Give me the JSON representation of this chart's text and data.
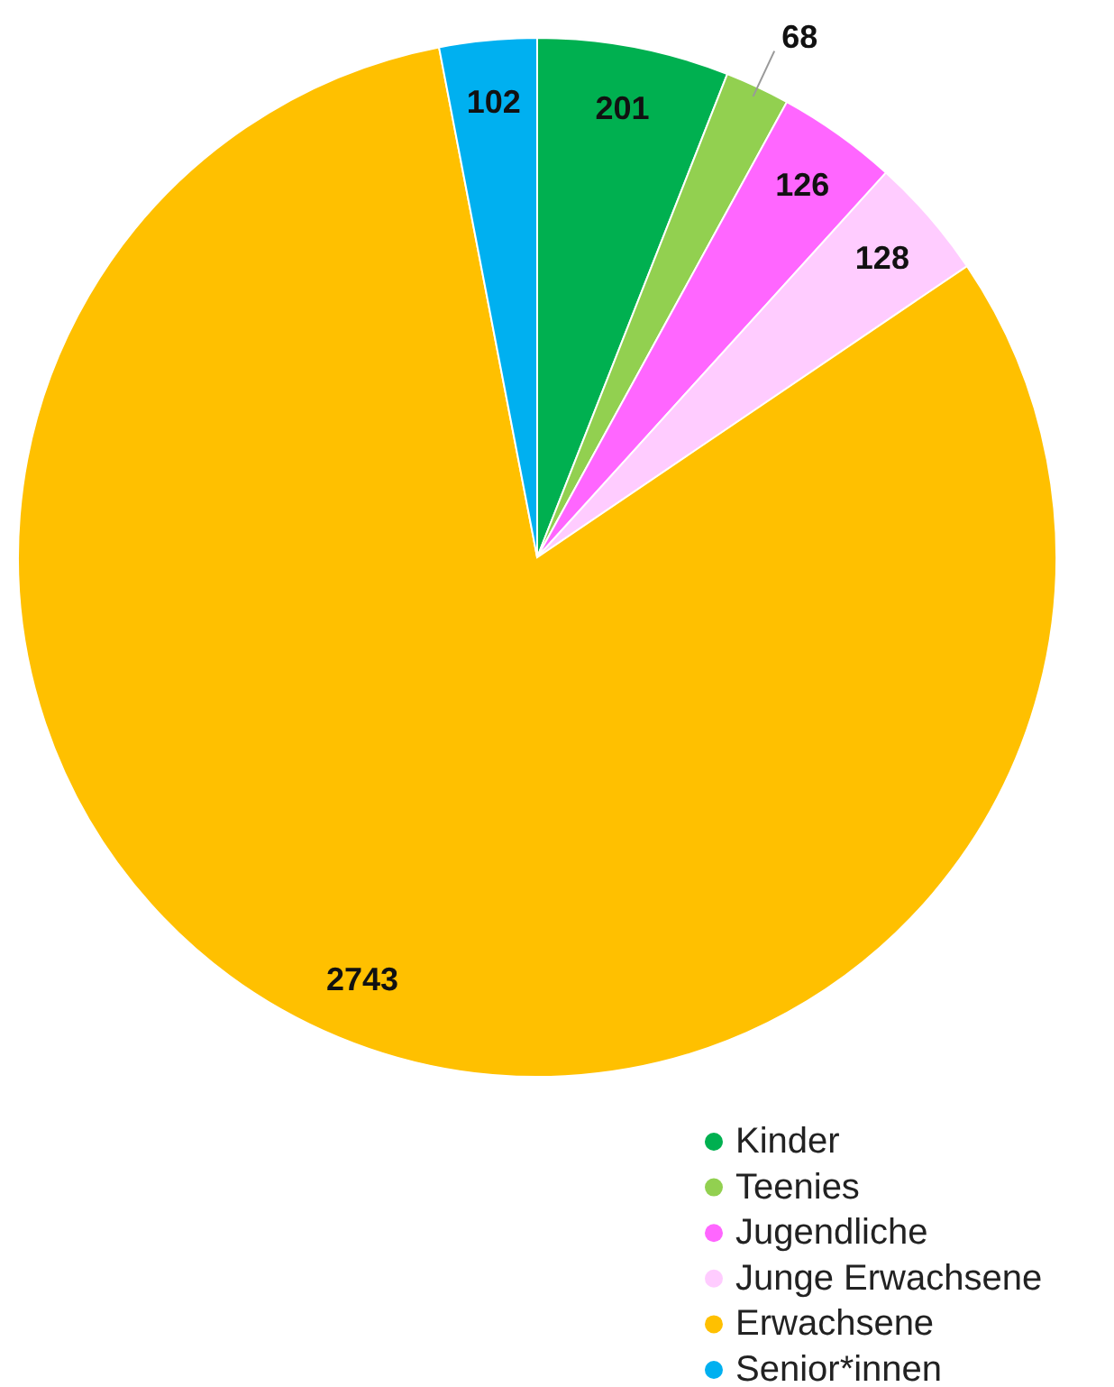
{
  "chart_data": {
    "type": "pie",
    "categories": [
      "Kinder",
      "Teenies",
      "Jugendliche",
      "Junge Erwachsene",
      "Erwachsene",
      "Senior*innen"
    ],
    "values": [
      201,
      68,
      126,
      128,
      2743,
      102
    ],
    "colors": [
      "#00b050",
      "#92d050",
      "#ff66ff",
      "#ffccff",
      "#ffc000",
      "#00b0f0"
    ],
    "data_labels": true,
    "legend": "bottom right"
  }
}
